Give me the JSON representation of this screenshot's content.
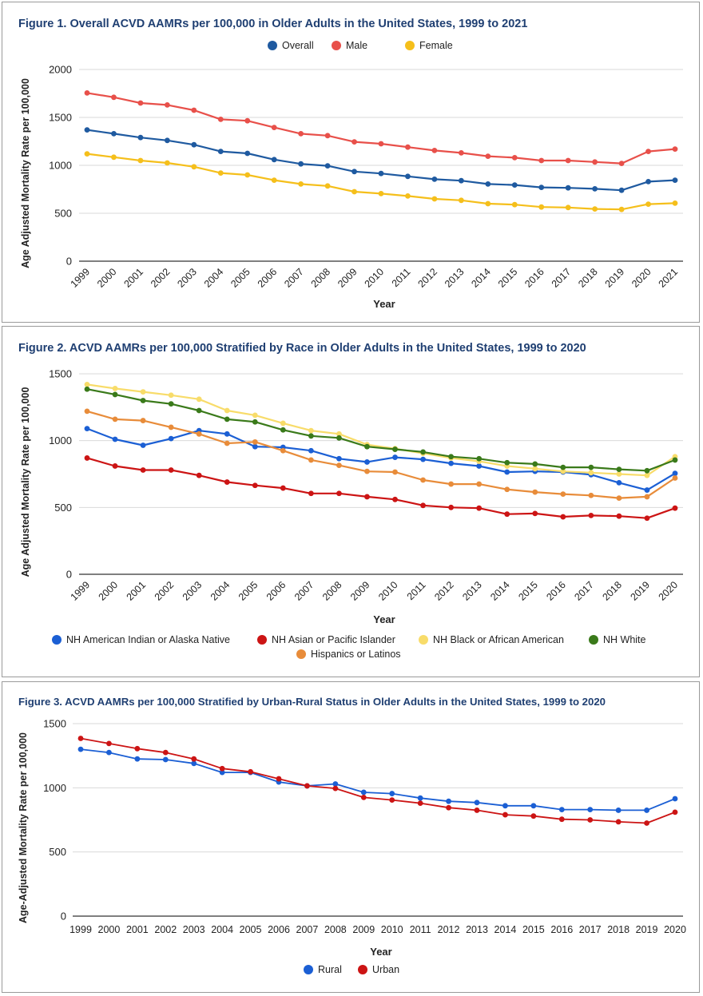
{
  "colors": {
    "grid": "#d9d9d9",
    "axis": "#333333",
    "title": "#1f3f72",
    "label": "#222222"
  },
  "chart_data": [
    {
      "type": "line",
      "title": "Figure 1. Overall ACVD AAMRs per 100,000 in Older Adults in the United States, 1999 to 2021",
      "xlabel": "Year",
      "ylabel": "Age Adjusted Mortality Rate per 100,000",
      "ylim": [
        0,
        2000
      ],
      "yticks": [
        "0",
        "500",
        "1000",
        "1500",
        "2000"
      ],
      "legend_position": "top",
      "x_tick_rotation": "rotated",
      "categories": [
        "1999",
        "2000",
        "2001",
        "2002",
        "2003",
        "2004",
        "2005",
        "2006",
        "2007",
        "2008",
        "2009",
        "2010",
        "2011",
        "2012",
        "2013",
        "2014",
        "2015",
        "2016",
        "2017",
        "2018",
        "2019",
        "2020",
        "2021"
      ],
      "series": [
        {
          "name": "Overall",
          "color": "#1f5aa0",
          "values": [
            1370,
            1330,
            1290,
            1260,
            1215,
            1145,
            1125,
            1060,
            1015,
            995,
            935,
            915,
            885,
            855,
            840,
            805,
            795,
            770,
            765,
            755,
            740,
            830,
            845
          ]
        },
        {
          "name": "Male",
          "color": "#e8504a",
          "values": [
            1755,
            1710,
            1650,
            1630,
            1575,
            1480,
            1465,
            1395,
            1330,
            1310,
            1245,
            1225,
            1190,
            1155,
            1130,
            1095,
            1080,
            1050,
            1050,
            1035,
            1020,
            1145,
            1170
          ]
        },
        {
          "name": "Female",
          "color": "#f5bf1b",
          "values": [
            1120,
            1085,
            1050,
            1025,
            985,
            920,
            900,
            845,
            805,
            785,
            725,
            705,
            680,
            650,
            635,
            600,
            590,
            565,
            560,
            545,
            540,
            595,
            605
          ]
        }
      ]
    },
    {
      "type": "line",
      "title": "Figure 2. ACVD AAMRs per 100,000 Stratified by Race in Older Adults in the United States, 1999 to 2020",
      "xlabel": "Year",
      "ylabel": "Age Adjusted Mortality Rate per 100,000",
      "ylim": [
        0,
        1500
      ],
      "yticks": [
        "0",
        "500",
        "1000",
        "1500"
      ],
      "legend_position": "bottom",
      "x_tick_rotation": "rotated",
      "categories": [
        "1999",
        "2000",
        "2001",
        "2002",
        "2003",
        "2004",
        "2005",
        "2006",
        "2007",
        "2008",
        "2009",
        "2010",
        "2011",
        "2012",
        "2013",
        "2014",
        "2015",
        "2016",
        "2017",
        "2018",
        "2019",
        "2020"
      ],
      "series": [
        {
          "name": "NH American Indian or Alaska Native",
          "color": "#1b5fd4",
          "values": [
            1090,
            1010,
            965,
            1015,
            1075,
            1050,
            955,
            950,
            925,
            865,
            840,
            875,
            860,
            830,
            810,
            765,
            770,
            765,
            745,
            685,
            630,
            755
          ]
        },
        {
          "name": "NH Asian or Pacific Islander",
          "color": "#cc1414",
          "values": [
            870,
            810,
            780,
            780,
            740,
            690,
            665,
            645,
            605,
            605,
            580,
            560,
            515,
            500,
            495,
            450,
            455,
            430,
            440,
            435,
            420,
            495
          ]
        },
        {
          "name": "NH Black or African American",
          "color": "#f8dc6a",
          "values": [
            1420,
            1390,
            1365,
            1340,
            1310,
            1225,
            1190,
            1130,
            1075,
            1050,
            970,
            940,
            905,
            870,
            845,
            810,
            790,
            770,
            760,
            750,
            740,
            880
          ]
        },
        {
          "name": "NH White",
          "color": "#3a7a1a",
          "values": [
            1385,
            1345,
            1300,
            1275,
            1225,
            1160,
            1140,
            1080,
            1035,
            1020,
            955,
            935,
            915,
            880,
            865,
            835,
            825,
            800,
            800,
            785,
            775,
            855
          ]
        },
        {
          "name": "Hispanics or Latinos",
          "color": "#e88c3a",
          "values": [
            1220,
            1160,
            1150,
            1100,
            1050,
            980,
            990,
            925,
            855,
            815,
            770,
            765,
            705,
            675,
            675,
            635,
            615,
            600,
            590,
            570,
            580,
            720
          ]
        }
      ]
    },
    {
      "type": "line",
      "title": "Figure 3. ACVD AAMRs per 100,000 Stratified by Urban-Rural Status in Older Adults in the United States, 1999 to 2020",
      "xlabel": "Year",
      "ylabel": "Age-Adjusted Mortality Rate per 100,000",
      "ylim": [
        0,
        1500
      ],
      "yticks": [
        "0",
        "500",
        "1000",
        "1500"
      ],
      "legend_position": "bottom",
      "x_tick_rotation": "none",
      "categories": [
        "1999",
        "2000",
        "2001",
        "2002",
        "2003",
        "2004",
        "2005",
        "2006",
        "2007",
        "2008",
        "2009",
        "2010",
        "2011",
        "2012",
        "2013",
        "2014",
        "2015",
        "2016",
        "2017",
        "2018",
        "2019",
        "2020"
      ],
      "series": [
        {
          "name": "Rural",
          "color": "#1b5fd4",
          "values": [
            1300,
            1275,
            1225,
            1220,
            1190,
            1120,
            1120,
            1045,
            1015,
            1030,
            965,
            955,
            920,
            895,
            885,
            860,
            860,
            830,
            830,
            825,
            825,
            915
          ]
        },
        {
          "name": "Urban",
          "color": "#cc1414",
          "values": [
            1385,
            1345,
            1305,
            1275,
            1225,
            1150,
            1125,
            1070,
            1015,
            995,
            925,
            905,
            880,
            845,
            825,
            790,
            780,
            755,
            750,
            735,
            725,
            810
          ]
        }
      ]
    }
  ]
}
